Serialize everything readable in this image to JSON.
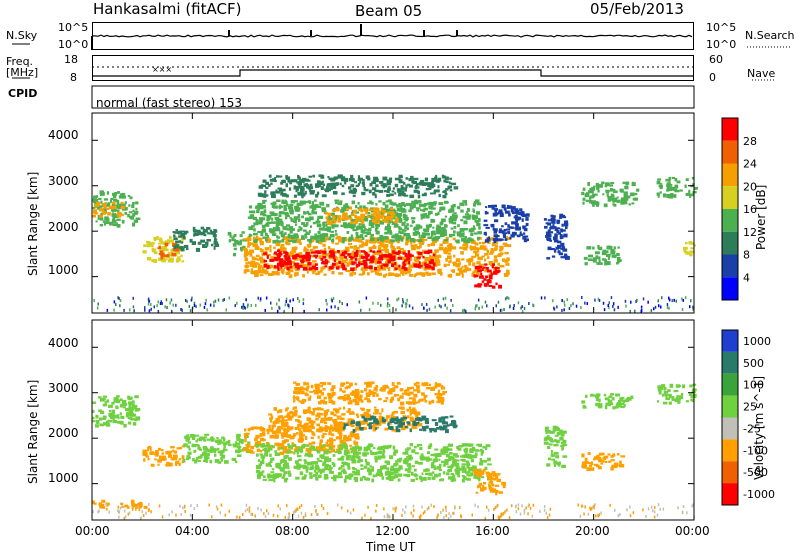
{
  "header": {
    "station": "Hankasalmi (fitACF)",
    "beam": "Beam 05",
    "date": "05/Feb/2013"
  },
  "strip_labels": {
    "nsky": "N.Sky",
    "nsky_top": "10^5",
    "nsky_bottom": "10^0",
    "nsearch": "N.Search",
    "nsearch_top": "10^5",
    "nsearch_bottom": "10^0",
    "freq_line1": "Freq.",
    "freq_line2": "[MHz]",
    "freq_top": "18",
    "freq_bottom": "8",
    "nave": "Nave",
    "nave_top": "60",
    "nave_bottom": "0",
    "cpid": "CPID",
    "mode": "normal (fast stereo) 153"
  },
  "colors": {
    "power_scale": [
      "#0000ff",
      "#1a3fa8",
      "#2e7d5a",
      "#4caf50",
      "#d7d020",
      "#f5a000",
      "#f06000",
      "#ff0000"
    ],
    "velocity_scale": [
      "#1f3fd0",
      "#2a7a6a",
      "#3aa33a",
      "#6fd040",
      "#c0c0b8",
      "#ffa000",
      "#f06000",
      "#ff0000"
    ],
    "velocity_ground": "#c0c0b8"
  },
  "chart_data": [
    {
      "type": "heatmap",
      "panel": "power",
      "ylabel": "Slant Range [km]",
      "x_domain_hours": [
        0,
        24
      ],
      "ylim": [
        200,
        4600
      ],
      "yticks": [
        "1000",
        "2000",
        "3000",
        "4000"
      ],
      "colorbar": {
        "label": "Power [dB]",
        "ticks": [
          "4",
          "8",
          "12",
          "16",
          "20",
          "24",
          "28"
        ],
        "range": [
          0,
          32
        ]
      },
      "regions": [
        {
          "t0": 0.0,
          "t1": 1.8,
          "r0": 2150,
          "r1": 2900,
          "value": 14
        },
        {
          "t0": 0.0,
          "t1": 1.2,
          "r0": 2350,
          "r1": 2650,
          "value": 20
        },
        {
          "t0": 2.0,
          "t1": 3.6,
          "r0": 1350,
          "r1": 1900,
          "value": 18
        },
        {
          "t0": 2.6,
          "t1": 3.3,
          "r0": 1450,
          "r1": 1750,
          "value": 25
        },
        {
          "t0": 3.2,
          "t1": 4.9,
          "r0": 1600,
          "r1": 2100,
          "value": 10
        },
        {
          "t0": 5.4,
          "t1": 6.0,
          "r0": 1500,
          "r1": 2000,
          "value": 12
        },
        {
          "t0": 6.0,
          "t1": 16.6,
          "r0": 1050,
          "r1": 1900,
          "value": 22
        },
        {
          "t0": 6.8,
          "t1": 13.6,
          "r0": 1200,
          "r1": 1600,
          "value": 28
        },
        {
          "t0": 6.2,
          "t1": 15.4,
          "r0": 1800,
          "r1": 2700,
          "value": 14
        },
        {
          "t0": 9.2,
          "t1": 12.2,
          "r0": 2200,
          "r1": 2550,
          "value": 22
        },
        {
          "t0": 6.6,
          "t1": 14.5,
          "r0": 2800,
          "r1": 3250,
          "value": 8
        },
        {
          "t0": 15.2,
          "t1": 16.2,
          "r0": 800,
          "r1": 1300,
          "value": 28
        },
        {
          "t0": 15.6,
          "t1": 17.3,
          "r0": 1800,
          "r1": 2600,
          "value": 6
        },
        {
          "t0": 18.0,
          "t1": 18.9,
          "r0": 1400,
          "r1": 2400,
          "value": 6
        },
        {
          "t0": 19.6,
          "t1": 21.0,
          "r0": 1300,
          "r1": 1700,
          "value": 12
        },
        {
          "t0": 19.5,
          "t1": 21.7,
          "r0": 2600,
          "r1": 3100,
          "value": 14
        },
        {
          "t0": 22.5,
          "t1": 24.0,
          "r0": 2800,
          "r1": 3200,
          "value": 12
        },
        {
          "t0": 23.5,
          "t1": 24.0,
          "r0": 1500,
          "r1": 1800,
          "value": 18
        }
      ]
    },
    {
      "type": "heatmap",
      "panel": "velocity",
      "ylabel": "Slant Range [km]",
      "xlabel": "Time UT",
      "x_domain_hours": [
        0,
        24
      ],
      "xticks": [
        "00:00",
        "04:00",
        "08:00",
        "12:00",
        "16:00",
        "20:00",
        "00:00"
      ],
      "ylim": [
        200,
        4600
      ],
      "yticks": [
        "1000",
        "2000",
        "3000",
        "4000"
      ],
      "colorbar": {
        "label": "Velocity [m s^-1]",
        "ticks": [
          "1000",
          "500",
          "100",
          "25",
          "-25",
          "-100",
          "-500",
          "-1000"
        ]
      },
      "regions": [
        {
          "t0": 0.0,
          "t1": 1.8,
          "r0": 2300,
          "r1": 2950,
          "value": 0
        },
        {
          "t0": 2.0,
          "t1": 3.6,
          "r0": 1400,
          "r1": 1850,
          "value": -200
        },
        {
          "t0": 3.6,
          "t1": 6.2,
          "r0": 1500,
          "r1": 2100,
          "value": 0
        },
        {
          "t0": 6.0,
          "t1": 10.5,
          "r0": 1700,
          "r1": 2300,
          "value": -300
        },
        {
          "t0": 6.5,
          "t1": 15.8,
          "r0": 1100,
          "r1": 1900,
          "value": 0
        },
        {
          "t0": 7.0,
          "t1": 13.0,
          "r0": 2200,
          "r1": 2700,
          "value": -150
        },
        {
          "t0": 10.0,
          "t1": 14.5,
          "r0": 2200,
          "r1": 2500,
          "value": 150
        },
        {
          "t0": 8.0,
          "t1": 14.0,
          "r0": 2800,
          "r1": 3250,
          "value": -400
        },
        {
          "t0": 15.2,
          "t1": 16.4,
          "r0": 800,
          "r1": 1350,
          "value": -300
        },
        {
          "t0": 18.0,
          "t1": 18.8,
          "r0": 1400,
          "r1": 2300,
          "value": 0
        },
        {
          "t0": 19.5,
          "t1": 21.2,
          "r0": 1350,
          "r1": 1700,
          "value": -300
        },
        {
          "t0": 19.5,
          "t1": 21.5,
          "r0": 2700,
          "r1": 3000,
          "value": 0
        },
        {
          "t0": 22.5,
          "t1": 24.0,
          "r0": 2800,
          "r1": 3200,
          "value": 0
        },
        {
          "t0": 0.0,
          "t1": 2.2,
          "r0": 500,
          "r1": 650,
          "value": -150
        }
      ]
    }
  ]
}
